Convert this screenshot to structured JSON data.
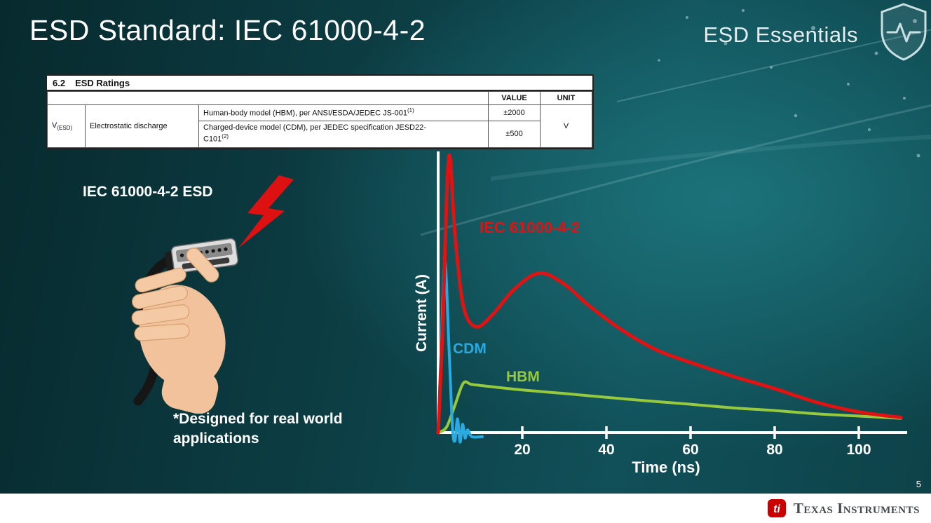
{
  "slide": {
    "title": "ESD Standard: IEC 61000-4-2",
    "brand": "ESD Essentials",
    "page_number": "5"
  },
  "ratings_table": {
    "heading_number": "6.2",
    "heading": "ESD Ratings",
    "value_header": "VALUE",
    "unit_header": "UNIT",
    "param_symbol": "V",
    "param_symbol_sub": "(ESD)",
    "param_label": "Electrostatic discharge",
    "rows": [
      {
        "description": "Human-body model (HBM), per ANSI/ESDA/JEDEC JS-001",
        "footnote": "(1)",
        "value": "±2000"
      },
      {
        "description": "Charged-device model (CDM), per JEDEC specification JESD22-C101",
        "footnote": "(2)",
        "value": "±500"
      }
    ],
    "unit_value": "V"
  },
  "illustration": {
    "label": "IEC 61000-4-2 ESD",
    "note": "*Designed for real world applications"
  },
  "chart_data": {
    "type": "line",
    "xlabel": "Time (ns)",
    "ylabel": "Current (A)",
    "x_ticks": [
      20,
      40,
      60,
      80,
      100
    ],
    "x_range": [
      0,
      111
    ],
    "grid": false,
    "legend_position": "inline-labels",
    "series": [
      {
        "name": "IEC 61000-4-2",
        "color": "#e01212",
        "points": [
          [
            0,
            0
          ],
          [
            1,
            0.35
          ],
          [
            2.5,
            1.0
          ],
          [
            4,
            0.72
          ],
          [
            6,
            0.46
          ],
          [
            9,
            0.385
          ],
          [
            13,
            0.43
          ],
          [
            18,
            0.52
          ],
          [
            24,
            0.58
          ],
          [
            30,
            0.54
          ],
          [
            36,
            0.46
          ],
          [
            44,
            0.37
          ],
          [
            52,
            0.3
          ],
          [
            60,
            0.255
          ],
          [
            70,
            0.205
          ],
          [
            80,
            0.16
          ],
          [
            90,
            0.11
          ],
          [
            100,
            0.075
          ],
          [
            110,
            0.055
          ]
        ]
      },
      {
        "name": "CDM",
        "color": "#29abe2",
        "points": [
          [
            0,
            0
          ],
          [
            0.7,
            0.3
          ],
          [
            1.6,
            0.62
          ],
          [
            2.6,
            0.3
          ],
          [
            3.4,
            0.02
          ],
          [
            4.0,
            -0.03
          ],
          [
            4.6,
            0.05
          ],
          [
            5.2,
            -0.035
          ],
          [
            5.8,
            0.03
          ],
          [
            6.4,
            -0.02
          ],
          [
            7.0,
            0.01
          ],
          [
            8,
            -0.015
          ],
          [
            10.5,
            -0.015
          ]
        ]
      },
      {
        "name": "HBM",
        "color": "#97c93d",
        "points": [
          [
            0,
            0
          ],
          [
            2,
            0.02
          ],
          [
            4,
            0.1
          ],
          [
            6,
            0.18
          ],
          [
            8,
            0.175
          ],
          [
            12,
            0.168
          ],
          [
            20,
            0.155
          ],
          [
            30,
            0.142
          ],
          [
            40,
            0.128
          ],
          [
            50,
            0.115
          ],
          [
            60,
            0.103
          ],
          [
            70,
            0.09
          ],
          [
            80,
            0.08
          ],
          [
            90,
            0.068
          ],
          [
            100,
            0.06
          ],
          [
            110,
            0.052
          ]
        ]
      }
    ]
  },
  "footer": {
    "company": "Texas Instruments",
    "bug_text": "ti"
  }
}
